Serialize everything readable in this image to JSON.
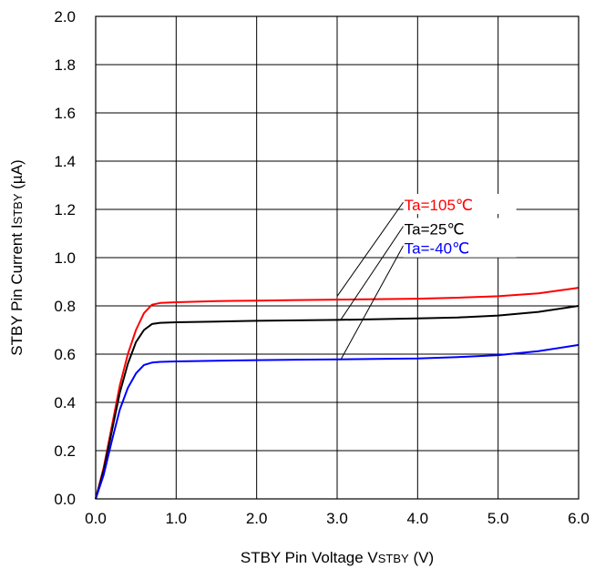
{
  "chart_data": {
    "type": "line",
    "xlabel_parts": [
      "STBY Pin Voltage V",
      "STBY",
      " (V)"
    ],
    "ylabel_parts": [
      "STBY Pin Current I",
      "STBY",
      " (µA)"
    ],
    "xlim": [
      0,
      6
    ],
    "ylim": [
      0,
      2
    ],
    "x_ticks": [
      "0.0",
      "1.0",
      "2.0",
      "3.0",
      "4.0",
      "5.0",
      "6.0"
    ],
    "y_ticks": [
      "0.0",
      "0.2",
      "0.4",
      "0.6",
      "0.8",
      "1.0",
      "1.2",
      "1.4",
      "1.6",
      "1.8",
      "2.0"
    ],
    "grid": true,
    "series": [
      {
        "name": "Ta=105℃",
        "color": "#ff0000",
        "points": [
          [
            0,
            0
          ],
          [
            0.1,
            0.13
          ],
          [
            0.2,
            0.3
          ],
          [
            0.3,
            0.47
          ],
          [
            0.4,
            0.6
          ],
          [
            0.5,
            0.7
          ],
          [
            0.6,
            0.77
          ],
          [
            0.7,
            0.805
          ],
          [
            0.8,
            0.812
          ],
          [
            1.0,
            0.815
          ],
          [
            1.5,
            0.82
          ],
          [
            2.0,
            0.822
          ],
          [
            2.5,
            0.824
          ],
          [
            3.0,
            0.826
          ],
          [
            3.5,
            0.828
          ],
          [
            4.0,
            0.83
          ],
          [
            4.5,
            0.834
          ],
          [
            5.0,
            0.84
          ],
          [
            5.5,
            0.852
          ],
          [
            6.0,
            0.875
          ]
        ],
        "label_pos": [
          3.8,
          1.2
        ],
        "arrow_to": [
          3.0,
          0.84
        ]
      },
      {
        "name": "Ta=25℃",
        "color": "#000000",
        "points": [
          [
            0,
            0
          ],
          [
            0.1,
            0.12
          ],
          [
            0.2,
            0.28
          ],
          [
            0.3,
            0.44
          ],
          [
            0.4,
            0.56
          ],
          [
            0.5,
            0.65
          ],
          [
            0.6,
            0.7
          ],
          [
            0.7,
            0.725
          ],
          [
            0.8,
            0.73
          ],
          [
            1.0,
            0.732
          ],
          [
            1.5,
            0.735
          ],
          [
            2.0,
            0.738
          ],
          [
            2.5,
            0.74
          ],
          [
            3.0,
            0.742
          ],
          [
            3.5,
            0.745
          ],
          [
            4.0,
            0.748
          ],
          [
            4.5,
            0.752
          ],
          [
            5.0,
            0.76
          ],
          [
            5.5,
            0.775
          ],
          [
            6.0,
            0.8
          ]
        ],
        "label_pos": [
          3.8,
          1.1
        ],
        "arrow_to": [
          3.05,
          0.745
        ]
      },
      {
        "name": "Ta=-40℃",
        "color": "#0000ff",
        "points": [
          [
            0,
            0
          ],
          [
            0.1,
            0.1
          ],
          [
            0.2,
            0.24
          ],
          [
            0.3,
            0.37
          ],
          [
            0.4,
            0.46
          ],
          [
            0.5,
            0.52
          ],
          [
            0.6,
            0.555
          ],
          [
            0.7,
            0.565
          ],
          [
            0.8,
            0.568
          ],
          [
            1.0,
            0.57
          ],
          [
            1.5,
            0.573
          ],
          [
            2.0,
            0.575
          ],
          [
            2.5,
            0.577
          ],
          [
            3.0,
            0.578
          ],
          [
            3.5,
            0.58
          ],
          [
            4.0,
            0.582
          ],
          [
            4.5,
            0.588
          ],
          [
            5.0,
            0.596
          ],
          [
            5.5,
            0.612
          ],
          [
            6.0,
            0.638
          ]
        ],
        "label_pos": [
          3.8,
          1.02
        ],
        "arrow_to": [
          3.05,
          0.58
        ]
      }
    ]
  }
}
